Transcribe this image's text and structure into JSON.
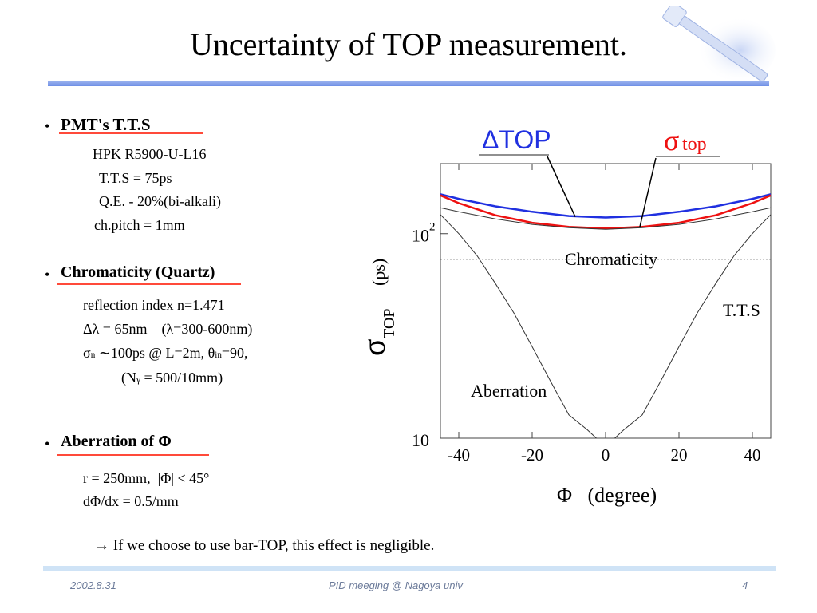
{
  "title": "Uncertainty of TOP measurement.",
  "sections": {
    "pmt": {
      "bullet": "•",
      "heading": "PMT's  T.T.S",
      "lines": [
        "HPK R5900-U-L16",
        "T.T.S = 75ps",
        "Q.E. - 20%(bi-alkali)",
        "ch.pitch = 1mm"
      ]
    },
    "chromaticity": {
      "bullet": "•",
      "heading": "Chromaticity (Quartz)",
      "lines": [
        "reflection index n=1.471",
        "Δλ = 65nm    (λ=300-600nm)"
      ],
      "sigma_line": {
        "a": "σ",
        "a_sub": "n",
        "b": " ∼100ps @ L=2m, θ",
        "b_sub": "in",
        "c": "=90,"
      },
      "ngamma_line": {
        "a": "(N",
        "a_sub": "γ",
        "b": " = 500/10mm)"
      }
    },
    "aberration": {
      "bullet": "•",
      "heading": "Aberration of Φ",
      "lines": [
        "r = 250mm,  |Φ| < 45°",
        "dΦ/dx = 0.5/mm"
      ]
    }
  },
  "note": "→ If we choose to use bar-TOP, this effect is negligible.",
  "footer": {
    "date": "2002.8.31",
    "center": "PID meeging @ Nagoya univ",
    "page": "4"
  },
  "colors": {
    "accent_blue": "#2030e0",
    "accent_red": "#ee1111",
    "underline": "#ff4a3a"
  },
  "chart_data": {
    "type": "line",
    "xlabel": "Φ   (degree)",
    "ylabel_sym": "σ",
    "ylabel_sub": "TOP",
    "ylabel_unit": "(ps)",
    "xlim": [
      -45,
      45
    ],
    "ylim": [
      10,
      220
    ],
    "y_scale": "log",
    "x_ticks": [
      "-40",
      "-20",
      "0",
      "20",
      "40"
    ],
    "x_tick_values": [
      -40,
      -20,
      0,
      20,
      40
    ],
    "y_ticks": [
      {
        "value": 100,
        "base": "10",
        "exp": "2"
      },
      {
        "value": 10,
        "base": "10",
        "exp": ""
      }
    ],
    "series": [
      {
        "name": "ΔTOP",
        "color": "#2030e0",
        "style": "solid",
        "x": [
          -45,
          -40,
          -30,
          -20,
          -10,
          0,
          10,
          20,
          30,
          40,
          45
        ],
        "y": [
          156,
          148,
          136,
          128,
          122,
          120,
          122,
          128,
          136,
          148,
          156
        ]
      },
      {
        "name": "σtop",
        "color": "#ee1111",
        "style": "solid",
        "x": [
          -45,
          -40,
          -30,
          -20,
          -10,
          0,
          10,
          20,
          30,
          40,
          45
        ],
        "y": [
          154,
          141,
          123,
          113,
          108,
          106,
          108,
          113,
          123,
          141,
          154
        ]
      },
      {
        "name": "Chromaticity",
        "color": "#333333",
        "style": "thin",
        "x": [
          -45,
          -40,
          -30,
          -20,
          -10,
          0,
          10,
          20,
          30,
          40,
          45
        ],
        "y": [
          134,
          128,
          118,
          111,
          107,
          105,
          107,
          111,
          118,
          128,
          134
        ]
      },
      {
        "name": "T.T.S",
        "color": "#333333",
        "style": "dotted",
        "x": [
          -45,
          45
        ],
        "y": [
          75,
          75
        ]
      },
      {
        "name": "Aberration",
        "color": "#333333",
        "style": "thin",
        "x": [
          -45,
          -40,
          -35,
          -30,
          -25,
          -20,
          -15,
          -10,
          -5,
          -2.5
        ],
        "y": [
          124,
          100,
          78,
          57,
          41,
          28,
          19,
          13,
          11,
          10
        ]
      },
      {
        "name": "",
        "color": "#333333",
        "style": "thin",
        "x": [
          2.5,
          5,
          10,
          15,
          20,
          25,
          30,
          35,
          40,
          45
        ],
        "y": [
          10,
          11,
          13,
          19,
          28,
          41,
          57,
          78,
          100,
          124
        ]
      }
    ],
    "labels": {
      "dtop": "ΔTOP",
      "stop_sym": "σ",
      "stop_txt": "top",
      "chromaticity": "Chromaticity",
      "tts": "T.T.S",
      "aberration": "Aberration"
    }
  }
}
